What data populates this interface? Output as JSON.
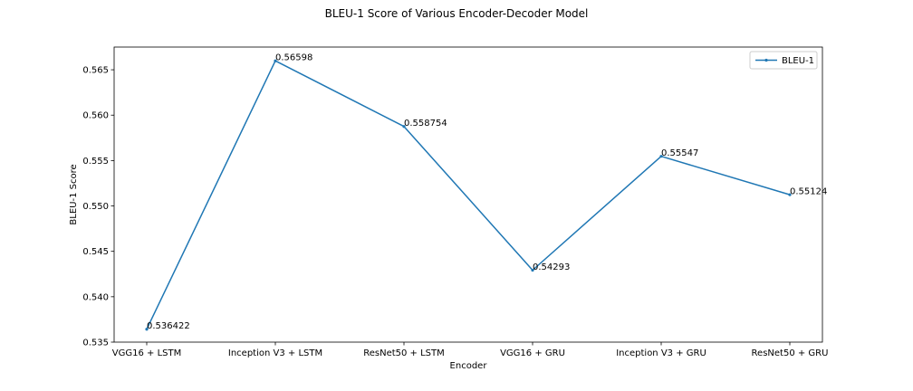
{
  "chart_data": {
    "type": "line",
    "title": "BLEU-1 Score of Various Encoder-Decoder Model",
    "xlabel": "Encoder",
    "ylabel": "BLEU-1 Score",
    "categories": [
      "VGG16 + LSTM",
      "Inception V3 + LSTM",
      "ResNet50 + LSTM",
      "VGG16 + GRU",
      "Inception V3 + GRU",
      "ResNet50 + GRU"
    ],
    "series": [
      {
        "name": "BLEU-1",
        "values": [
          0.536422,
          0.56598,
          0.558754,
          0.54293,
          0.55547,
          0.55124
        ],
        "labels": [
          "0.536422",
          "0.56598",
          "0.558754",
          "0.54293",
          "0.55547",
          "0.55124"
        ],
        "color": "#1f77b4",
        "marker": "point"
      }
    ],
    "ylim": [
      0.535,
      0.5675
    ],
    "yticks": [
      0.535,
      0.54,
      0.545,
      0.55,
      0.555,
      0.56,
      0.565
    ],
    "ytick_labels": [
      "0.535",
      "0.540",
      "0.545",
      "0.550",
      "0.555",
      "0.560",
      "0.565"
    ],
    "grid": false,
    "legend": "upper right"
  }
}
